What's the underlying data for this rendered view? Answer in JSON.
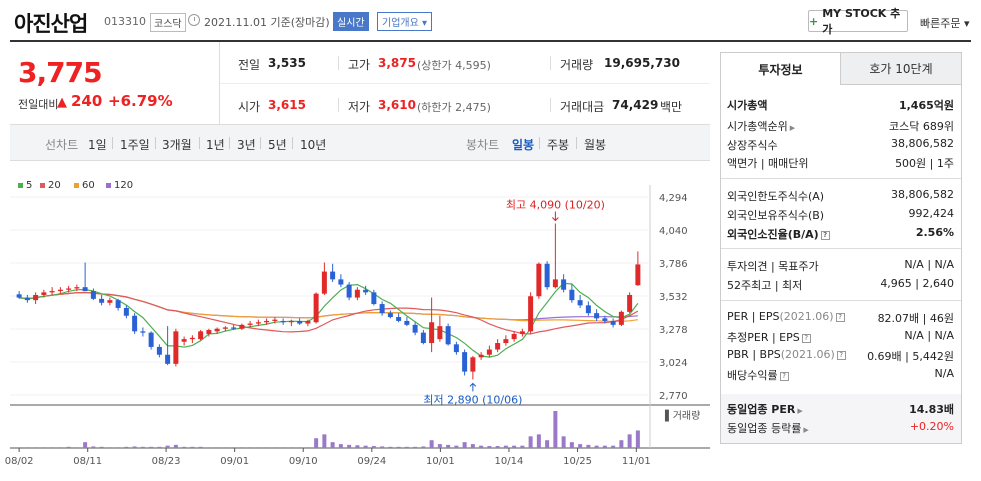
{
  "header": {
    "company_name": "아진산업",
    "code": "013310",
    "market": "코스닥",
    "basis": "2021.11.01 기준(장마감)",
    "realtime": "실시간",
    "overview": "기업개요",
    "mystock_plus": "+",
    "mystock": "MY STOCK 추가",
    "quick_order": "빠른주문"
  },
  "price": {
    "current": "3,775",
    "change_label": "전일대비",
    "change_icon": "up-triangle",
    "change_symbol": "▲",
    "change": "240",
    "change_pct": "+6.79%"
  },
  "quote": {
    "prev_label": "전일",
    "prev": "3,535",
    "high_label": "고가",
    "high": "3,875",
    "upper_limit_label": "(상한가 4,595)",
    "volume_label": "거래량",
    "volume": "19,695,730",
    "open_label": "시가",
    "open": "3,615",
    "low_label": "저가",
    "low": "3,610",
    "lower_limit_label": "(하한가 2,475)",
    "amount_label": "거래대금",
    "amount": "74,429",
    "amount_unit": "백만"
  },
  "period_bar": {
    "line_label": "선차트",
    "line_periods": [
      "1일",
      "1주일",
      "3개월",
      "1년",
      "3년",
      "5년",
      "10년"
    ],
    "candle_label": "봉차트",
    "candle_periods": [
      "일봉",
      "주봉",
      "월봉"
    ],
    "active_candle": "일봉"
  },
  "chart_data": {
    "type": "candlestick",
    "legend": [
      {
        "name": "5",
        "color": "#4caf50"
      },
      {
        "name": "20",
        "color": "#e05a5a"
      },
      {
        "name": "60",
        "color": "#f0a030"
      },
      {
        "name": "120",
        "color": "#9b6fd0"
      }
    ],
    "y_ticks": [
      "4,294",
      "4,040",
      "3,786",
      "3,532",
      "3,278",
      "3,024",
      "2,770"
    ],
    "ylim": [
      2770,
      4294
    ],
    "x_ticks": [
      "08/02",
      "08/11",
      "08/23",
      "09/01",
      "09/10",
      "09/24",
      "10/01",
      "10/14",
      "10/25",
      "11/01"
    ],
    "high_annotation": "최고 4,090 (10/20)",
    "low_annotation": "최저 2,890 (10/06)",
    "volume_legend": "거래량",
    "candles": [
      [
        3545,
        3570,
        3510,
        3520
      ],
      [
        3520,
        3540,
        3480,
        3500
      ],
      [
        3500,
        3560,
        3470,
        3540
      ],
      [
        3540,
        3580,
        3520,
        3560
      ],
      [
        3560,
        3600,
        3540,
        3570
      ],
      [
        3570,
        3600,
        3550,
        3580
      ],
      [
        3580,
        3610,
        3560,
        3590
      ],
      [
        3590,
        3620,
        3570,
        3600
      ],
      [
        3600,
        3790,
        3580,
        3570
      ],
      [
        3570,
        3590,
        3500,
        3510
      ],
      [
        3510,
        3540,
        3460,
        3480
      ],
      [
        3480,
        3520,
        3460,
        3500
      ],
      [
        3500,
        3510,
        3420,
        3440
      ],
      [
        3440,
        3460,
        3360,
        3380
      ],
      [
        3380,
        3400,
        3240,
        3260
      ],
      [
        3260,
        3290,
        3220,
        3250
      ],
      [
        3250,
        3260,
        3120,
        3140
      ],
      [
        3140,
        3160,
        3060,
        3080
      ],
      [
        3080,
        3300,
        3000,
        3010
      ],
      [
        3010,
        3280,
        2990,
        3260
      ],
      [
        3180,
        3220,
        3150,
        3200
      ],
      [
        3200,
        3230,
        3170,
        3210
      ],
      [
        3200,
        3270,
        3190,
        3260
      ],
      [
        3240,
        3280,
        3220,
        3270
      ],
      [
        3260,
        3290,
        3240,
        3280
      ],
      [
        3280,
        3300,
        3260,
        3290
      ],
      [
        3290,
        3310,
        3270,
        3280
      ],
      [
        3280,
        3320,
        3270,
        3310
      ],
      [
        3310,
        3340,
        3290,
        3320
      ],
      [
        3320,
        3350,
        3300,
        3330
      ],
      [
        3330,
        3360,
        3310,
        3340
      ],
      [
        3340,
        3370,
        3320,
        3350
      ],
      [
        3340,
        3360,
        3310,
        3330
      ],
      [
        3330,
        3350,
        3300,
        3340
      ],
      [
        3340,
        3360,
        3310,
        3320
      ],
      [
        3320,
        3350,
        3300,
        3340
      ],
      [
        3330,
        3560,
        3320,
        3550
      ],
      [
        3550,
        3790,
        3540,
        3720
      ],
      [
        3720,
        3780,
        3640,
        3660
      ],
      [
        3660,
        3700,
        3600,
        3620
      ],
      [
        3620,
        3640,
        3500,
        3520
      ],
      [
        3520,
        3600,
        3500,
        3580
      ],
      [
        3580,
        3610,
        3540,
        3560
      ],
      [
        3560,
        3580,
        3460,
        3470
      ],
      [
        3470,
        3490,
        3380,
        3400
      ],
      [
        3400,
        3420,
        3360,
        3370
      ],
      [
        3370,
        3400,
        3330,
        3340
      ],
      [
        3340,
        3370,
        3300,
        3310
      ],
      [
        3310,
        3330,
        3230,
        3250
      ],
      [
        3250,
        3270,
        3160,
        3170
      ],
      [
        3170,
        3520,
        3100,
        3330
      ],
      [
        3200,
        3380,
        3180,
        3300
      ],
      [
        3300,
        3320,
        3150,
        3160
      ],
      [
        3160,
        3180,
        3080,
        3100
      ],
      [
        3100,
        3120,
        2920,
        2950
      ],
      [
        2950,
        3070,
        2890,
        3060
      ],
      [
        3060,
        3100,
        3040,
        3080
      ],
      [
        3080,
        3150,
        3060,
        3120
      ],
      [
        3120,
        3200,
        3100,
        3170
      ],
      [
        3170,
        3230,
        3150,
        3200
      ],
      [
        3200,
        3260,
        3180,
        3240
      ],
      [
        3240,
        3280,
        3220,
        3260
      ],
      [
        3260,
        3560,
        3240,
        3530
      ],
      [
        3530,
        3790,
        3510,
        3780
      ],
      [
        3780,
        3800,
        3580,
        3600
      ],
      [
        3600,
        4090,
        3590,
        3660
      ],
      [
        3660,
        3700,
        3560,
        3580
      ],
      [
        3580,
        3620,
        3480,
        3500
      ],
      [
        3500,
        3540,
        3440,
        3460
      ],
      [
        3460,
        3490,
        3380,
        3400
      ],
      [
        3400,
        3430,
        3340,
        3360
      ],
      [
        3360,
        3380,
        3320,
        3340
      ],
      [
        3340,
        3360,
        3290,
        3310
      ],
      [
        3310,
        3420,
        3300,
        3410
      ],
      [
        3410,
        3560,
        3400,
        3540
      ],
      [
        3615,
        3875,
        3610,
        3775
      ]
    ],
    "volumes": [
      0.2,
      0.2,
      0.2,
      0.2,
      0.2,
      0.2,
      0.3,
      0.2,
      1.5,
      0.4,
      0.3,
      0.2,
      0.2,
      0.3,
      0.4,
      0.3,
      0.3,
      0.3,
      0.6,
      0.8,
      0.3,
      0.3,
      0.3,
      0.2,
      0.2,
      0.2,
      0.2,
      0.2,
      0.2,
      0.2,
      0.2,
      0.2,
      0.2,
      0.2,
      0.2,
      0.2,
      2.5,
      3.5,
      1.5,
      1.0,
      0.8,
      0.7,
      0.6,
      0.5,
      0.4,
      0.3,
      0.3,
      0.3,
      0.3,
      0.4,
      2.0,
      1.0,
      0.8,
      0.6,
      1.5,
      1.0,
      0.6,
      0.5,
      0.5,
      0.6,
      0.6,
      0.6,
      3.0,
      3.5,
      2.0,
      9.5,
      3.0,
      1.5,
      1.0,
      0.8,
      0.6,
      0.6,
      0.6,
      2.0,
      3.5,
      4.5
    ]
  },
  "invest_panel": {
    "tab_invest": "투자정보",
    "tab_hoga": "호가 10단계",
    "market_cap_label": "시가총액",
    "market_cap": "1,465억원",
    "market_cap_rank_label": "시가총액순위",
    "market_cap_rank": "코스닥 689위",
    "shares_label": "상장주식수",
    "shares": "38,806,582",
    "par_label": "액면가 | 매매단위",
    "par": "500원 | 1주",
    "foreign_limit_label": "외국인한도주식수(A)",
    "foreign_limit": "38,806,582",
    "foreign_hold_label": "외국인보유주식수(B)",
    "foreign_hold": "992,424",
    "foreign_rate_label": "외국인소진율(B/A)",
    "foreign_rate": "2.56%",
    "opinion_label": "투자의견 | 목표주가",
    "opinion": "N/A | N/A",
    "range52_label": "52주최고 | 최저",
    "range52": "4,965 | 2,640",
    "per_label": "PER | EPS",
    "per_period": "(2021.06)",
    "per": "82.07배 | 46원",
    "est_per_label": "추정PER | EPS",
    "est_per": "N/A | N/A",
    "pbr_label": "PBR | BPS",
    "pbr_period": "(2021.06)",
    "pbr": "0.69배 | 5,442원",
    "dividend_label": "배당수익률",
    "dividend": "N/A",
    "sector_per_label": "동일업종 PER",
    "sector_per": "14.83배",
    "sector_change_label": "동일업종 등락률",
    "sector_change": "+0.20%"
  }
}
